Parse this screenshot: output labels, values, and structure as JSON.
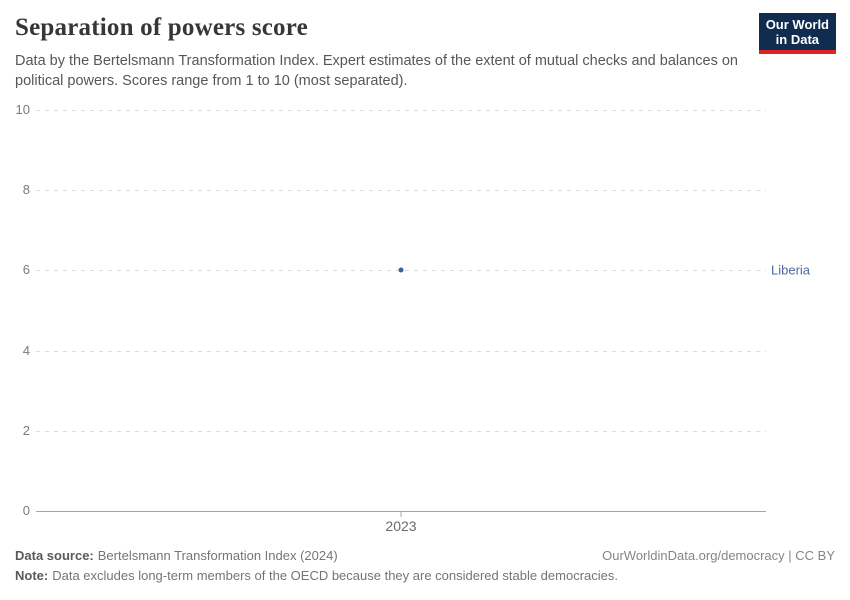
{
  "header": {
    "title": "Separation of powers score",
    "subtitle": "Data by the Bertelsmann Transformation Index. Expert estimates of the extent of mutual checks and balances on political powers. Scores range from 1 to 10 (most separated).",
    "logo": {
      "line1": "Our World",
      "line2": "in Data",
      "bg_color": "#102d50",
      "accent_color": "#dc2626"
    }
  },
  "chart_data": {
    "type": "scatter",
    "title": "Separation of powers score",
    "x": [
      2023
    ],
    "xtick_labels": [
      "2023"
    ],
    "series": [
      {
        "name": "Liberia",
        "values": [
          6
        ],
        "color": "#3d5f9e",
        "label_color": "#4c6a9c"
      }
    ],
    "ylim": [
      0,
      10
    ],
    "yticks": [
      0,
      2,
      4,
      6,
      8,
      10
    ],
    "grid": true,
    "legend_position": "right-of-last-point"
  },
  "footer": {
    "datasource_label": "Data source:",
    "datasource_value": "Bertelsmann Transformation Index (2024)",
    "note_label": "Note:",
    "note_value": "Data excludes long-term members of the OECD because they are considered stable democracies.",
    "license": "OurWorldinData.org/democracy | CC BY"
  },
  "colors": {
    "grid": "#dcdcdc",
    "axis": "#a5a5a5",
    "tick_label": "#7a7a7a"
  }
}
